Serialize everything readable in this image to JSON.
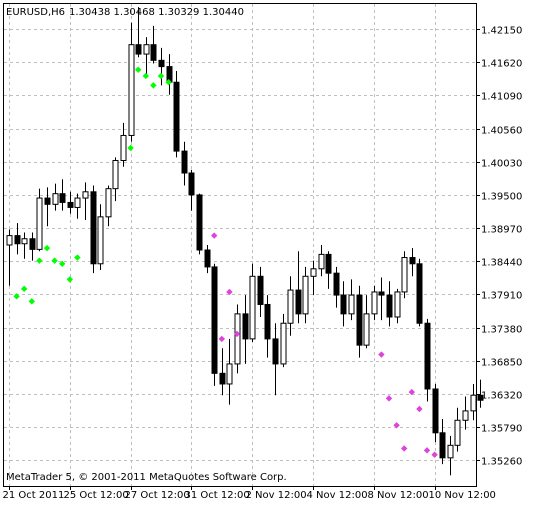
{
  "header": {
    "symbol": "EURUSD,H6",
    "quote": "1.30438 1.30468 1.30329 1.30440"
  },
  "footer": {
    "copyright": "MetaTrader 5, © 2001-2011 MetaQuotes Software Corp."
  },
  "colors": {
    "background": "#ffffff",
    "grid": "#c0c0c0",
    "candle": "#000000",
    "arrow_up": "#00ff00",
    "arrow_down": "#dd44dd"
  },
  "chart_data": {
    "type": "candlestick",
    "title": "EURUSD,H6",
    "ylim": [
      1.3485,
      1.4255
    ],
    "grid": true,
    "y_ticks": [
      "1.42150",
      "1.41620",
      "1.41090",
      "1.40560",
      "1.40030",
      "1.39500",
      "1.38970",
      "1.38440",
      "1.37910",
      "1.37380",
      "1.36850",
      "1.36320",
      "1.35790",
      "1.35260"
    ],
    "x_ticks": [
      "21 Oct 2011",
      "25 Oct 12:00",
      "27 Oct 12:00",
      "31 Oct 12:00",
      "2 Nov 12:00",
      "4 Nov 12:00",
      "8 Nov 12:00",
      "10 Nov 12:00"
    ],
    "x_tick_bars": [
      0,
      8,
      16,
      24,
      32,
      40,
      48,
      56
    ],
    "candles": [
      [
        1.387,
        1.3895,
        1.3805,
        1.3885
      ],
      [
        1.3885,
        1.3905,
        1.3855,
        1.3872
      ],
      [
        1.3872,
        1.389,
        1.3848,
        1.388
      ],
      [
        1.388,
        1.389,
        1.3845,
        1.3863
      ],
      [
        1.3863,
        1.396,
        1.386,
        1.3945
      ],
      [
        1.3945,
        1.3962,
        1.39,
        1.3935
      ],
      [
        1.3935,
        1.3968,
        1.3925,
        1.3952
      ],
      [
        1.3952,
        1.3975,
        1.3925,
        1.3938
      ],
      [
        1.3938,
        1.3955,
        1.392,
        1.393
      ],
      [
        1.393,
        1.3952,
        1.3912,
        1.3945
      ],
      [
        1.3945,
        1.397,
        1.391,
        1.3955
      ],
      [
        1.3955,
        1.3965,
        1.3825,
        1.384
      ],
      [
        1.384,
        1.3935,
        1.383,
        1.3915
      ],
      [
        1.3915,
        1.3965,
        1.39,
        1.396
      ],
      [
        1.396,
        1.401,
        1.394,
        1.4005
      ],
      [
        1.4005,
        1.4065,
        1.3995,
        1.4045
      ],
      [
        1.4045,
        1.4225,
        1.4035,
        1.419
      ],
      [
        1.419,
        1.425,
        1.417,
        1.4175
      ],
      [
        1.4175,
        1.4202,
        1.414,
        1.419
      ],
      [
        1.419,
        1.422,
        1.416,
        1.4165
      ],
      [
        1.4165,
        1.4185,
        1.4125,
        1.4155
      ],
      [
        1.4155,
        1.4175,
        1.411,
        1.413
      ],
      [
        1.413,
        1.4148,
        1.401,
        1.402
      ],
      [
        1.402,
        1.4035,
        1.3965,
        1.3985
      ],
      [
        1.3985,
        1.399,
        1.3925,
        1.395
      ],
      [
        1.395,
        1.3952,
        1.3855,
        1.3862
      ],
      [
        1.3862,
        1.387,
        1.3825,
        1.3835
      ],
      [
        1.3835,
        1.384,
        1.3645,
        1.3665
      ],
      [
        1.3665,
        1.3705,
        1.363,
        1.3648
      ],
      [
        1.3648,
        1.372,
        1.3615,
        1.368
      ],
      [
        1.368,
        1.3775,
        1.3665,
        1.376
      ],
      [
        1.376,
        1.379,
        1.368,
        1.372
      ],
      [
        1.372,
        1.384,
        1.3715,
        1.382
      ],
      [
        1.382,
        1.3835,
        1.3755,
        1.3775
      ],
      [
        1.3775,
        1.379,
        1.369,
        1.372
      ],
      [
        1.372,
        1.3745,
        1.363,
        1.368
      ],
      [
        1.368,
        1.376,
        1.3675,
        1.3745
      ],
      [
        1.3745,
        1.382,
        1.3725,
        1.3798
      ],
      [
        1.3798,
        1.386,
        1.3745,
        1.376
      ],
      [
        1.376,
        1.3835,
        1.3745,
        1.382
      ],
      [
        1.382,
        1.3845,
        1.379,
        1.3832
      ],
      [
        1.3832,
        1.387,
        1.382,
        1.3855
      ],
      [
        1.3855,
        1.386,
        1.38,
        1.3825
      ],
      [
        1.3825,
        1.3835,
        1.377,
        1.379
      ],
      [
        1.379,
        1.3812,
        1.374,
        1.376
      ],
      [
        1.376,
        1.3815,
        1.375,
        1.379
      ],
      [
        1.379,
        1.3805,
        1.369,
        1.371
      ],
      [
        1.371,
        1.379,
        1.3705,
        1.376
      ],
      [
        1.376,
        1.3805,
        1.375,
        1.3795
      ],
      [
        1.3795,
        1.3818,
        1.375,
        1.379
      ],
      [
        1.379,
        1.3812,
        1.374,
        1.3755
      ],
      [
        1.3755,
        1.38,
        1.3745,
        1.3795
      ],
      [
        1.3795,
        1.386,
        1.3785,
        1.385
      ],
      [
        1.385,
        1.3865,
        1.382,
        1.384
      ],
      [
        1.384,
        1.3848,
        1.374,
        1.3745
      ],
      [
        1.3745,
        1.3752,
        1.362,
        1.364
      ],
      [
        1.364,
        1.3648,
        1.3555,
        1.357
      ],
      [
        1.357,
        1.3592,
        1.352,
        1.353
      ],
      [
        1.353,
        1.3565,
        1.3502,
        1.355
      ],
      [
        1.355,
        1.361,
        1.354,
        1.359
      ],
      [
        1.359,
        1.3628,
        1.3575,
        1.3605
      ],
      [
        1.3605,
        1.3648,
        1.359,
        1.363
      ],
      [
        1.363,
        1.3655,
        1.361,
        1.3622
      ]
    ],
    "arrows_up": [
      [
        1,
        1.3788
      ],
      [
        2,
        1.38
      ],
      [
        3,
        1.378
      ],
      [
        4,
        1.3845
      ],
      [
        5,
        1.3865
      ],
      [
        6,
        1.3845
      ],
      [
        7,
        1.384
      ],
      [
        8,
        1.3815
      ],
      [
        9,
        1.385
      ],
      [
        16,
        1.4025
      ],
      [
        17,
        1.415
      ],
      [
        18,
        1.414
      ],
      [
        19,
        1.4125
      ],
      [
        20,
        1.414
      ],
      [
        21,
        1.413
      ]
    ],
    "arrows_down": [
      [
        27,
        1.3885
      ],
      [
        28,
        1.372
      ],
      [
        29,
        1.3795
      ],
      [
        30,
        1.3728
      ],
      [
        49,
        1.3695
      ],
      [
        50,
        1.3625
      ],
      [
        51,
        1.3582
      ],
      [
        52,
        1.3545
      ],
      [
        53,
        1.3635
      ],
      [
        54,
        1.3608
      ],
      [
        55,
        1.3542
      ],
      [
        56,
        1.3535
      ]
    ]
  }
}
